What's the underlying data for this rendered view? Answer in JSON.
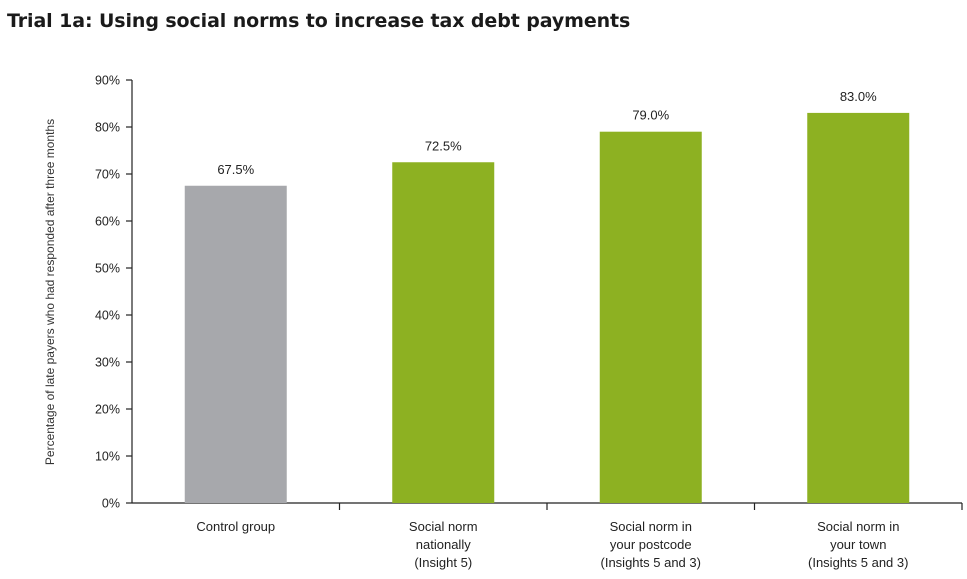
{
  "chart_data": {
    "type": "bar",
    "title": "Trial 1a: Using social norms to increase tax debt payments",
    "xlabel": "",
    "ylabel": "Percentage of late payers who had responded after three months",
    "ylim": [
      0,
      90
    ],
    "yticks": [
      "0%",
      "10%",
      "20%",
      "30%",
      "40%",
      "50%",
      "60%",
      "70%",
      "80%",
      "90%"
    ],
    "grid": false,
    "categories": [
      [
        "Control group"
      ],
      [
        "Social norm",
        "nationally",
        "(Insight 5)"
      ],
      [
        "Social norm in",
        "your postcode",
        "(Insights 5 and 3)"
      ],
      [
        "Social norm in",
        "your town",
        "(Insights 5 and 3)"
      ]
    ],
    "values": [
      67.5,
      72.5,
      79.0,
      83.0
    ],
    "data_labels": [
      "67.5%",
      "72.5%",
      "79.0%",
      "83.0%"
    ],
    "colors": [
      "#a7a8ac",
      "#8db122",
      "#8db122",
      "#8db122"
    ]
  }
}
